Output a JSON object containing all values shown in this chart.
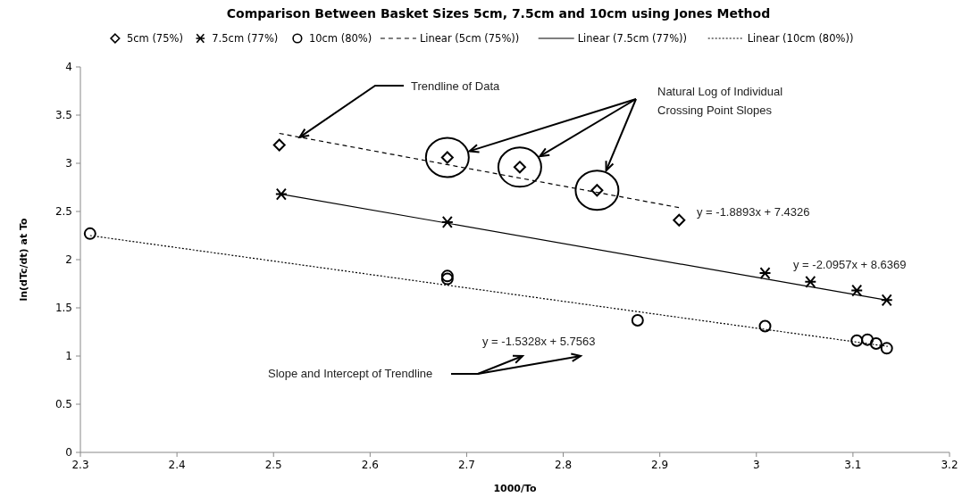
{
  "chart_data": {
    "type": "scatter",
    "title": "Comparison Between Basket Sizes 5cm, 7.5cm and 10cm using Jones Method",
    "xlabel": "1000/To",
    "ylabel": "ln(dTc/dt) at To",
    "xlim": [
      2.3,
      3.2
    ],
    "xticks": [
      2.3,
      2.4,
      2.5,
      2.6,
      2.7,
      2.8,
      2.9,
      3,
      3.1,
      3.2
    ],
    "ylim": [
      0,
      4
    ],
    "yticks": [
      0,
      0.5,
      1,
      1.5,
      2,
      2.5,
      3,
      3.5,
      4
    ],
    "grid": false,
    "legend": "top",
    "series": [
      {
        "name": "5cm (75%)",
        "marker": "diamond",
        "color": "#000000",
        "x": [
          2.506,
          2.68,
          2.755,
          2.835,
          2.92
        ],
        "values": [
          3.19,
          3.06,
          2.96,
          2.72,
          2.41
        ]
      },
      {
        "name": "7.5cm (77%)",
        "marker": "cross",
        "color": "#000000",
        "x": [
          2.508,
          2.68,
          3.009,
          3.056,
          3.104,
          3.135
        ],
        "values": [
          2.68,
          2.39,
          1.86,
          1.77,
          1.68,
          1.58
        ]
      },
      {
        "name": "10cm (80%)",
        "marker": "circle",
        "color": "#000000",
        "x": [
          2.31,
          2.68,
          2.68,
          2.877,
          3.009,
          3.104,
          3.115,
          3.124,
          3.135
        ],
        "values": [
          2.27,
          1.83,
          1.8,
          1.37,
          1.31,
          1.16,
          1.17,
          1.13,
          1.08
        ]
      },
      {
        "name": "Linear (5cm (75%))",
        "type": "line",
        "line_style": "dashed",
        "color": "#000000",
        "x": [
          2.506,
          2.92
        ],
        "values": [
          3.31,
          2.54
        ]
      },
      {
        "name": "Linear (7.5cm (77%))",
        "type": "line",
        "line_style": "solid",
        "color": "#000000",
        "x": [
          2.508,
          3.135
        ],
        "values": [
          2.68,
          1.58
        ]
      },
      {
        "name": "Linear (10cm (80%))",
        "type": "line",
        "line_style": "dotted",
        "color": "#000000",
        "x": [
          2.31,
          3.136
        ],
        "values": [
          2.25,
          1.1
        ]
      }
    ],
    "annotations": [
      {
        "text": "Trendline of Data",
        "x": 2.527,
        "y": 3.27
      },
      "Natural Log of Individual\nCrossing Point Slopes",
      "y = -1.8893x + 7.4326",
      "y = -2.0957x + 8.6369",
      "y = -1.5328x + 5.7563",
      "Slope and Intercept of Trendline"
    ]
  }
}
